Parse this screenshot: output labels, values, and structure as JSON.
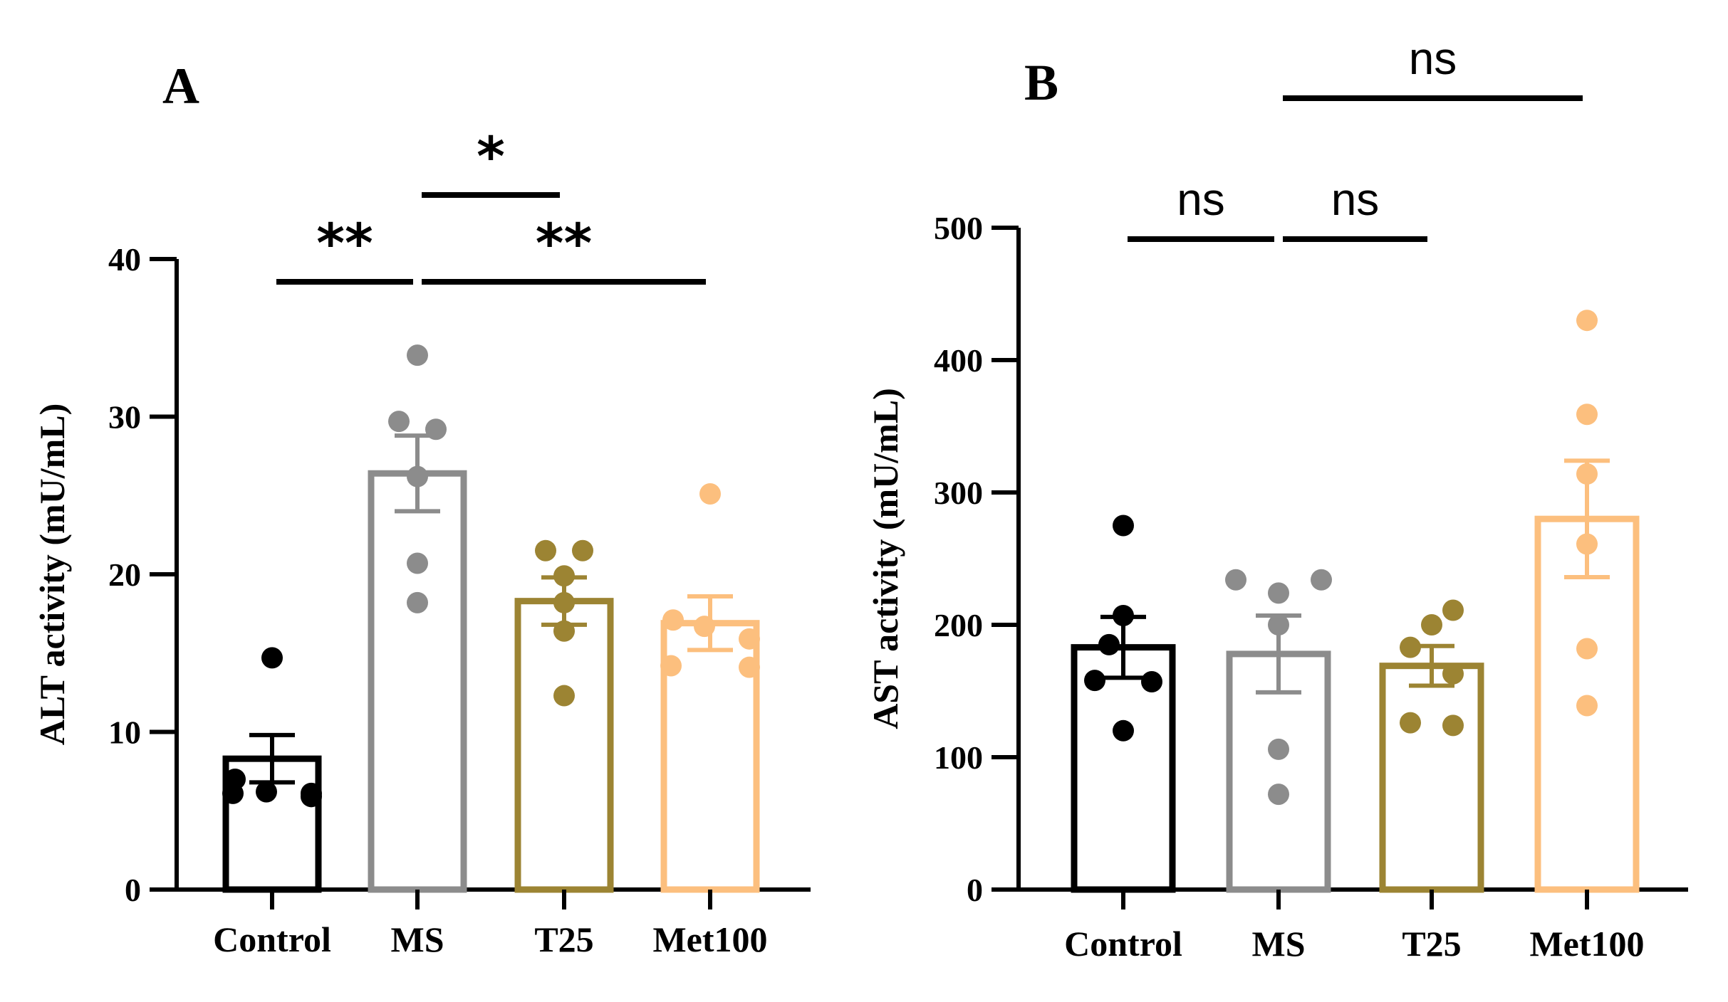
{
  "chart_data": [
    {
      "type": "bar",
      "panel_label": "A",
      "title": "",
      "xlabel": "",
      "ylabel": "ALT activity (mU/mL)",
      "ylim": [
        0,
        40
      ],
      "yticks": [
        0,
        10,
        20,
        30,
        40
      ],
      "categories": [
        "Control",
        "MS",
        "T25",
        "Met100"
      ],
      "bar_colors": [
        "#000000",
        "#8c8c8c",
        "#9c8433",
        "#fcbf7e"
      ],
      "values": [
        8.3,
        26.4,
        18.3,
        16.9
      ],
      "sem": [
        1.5,
        2.4,
        1.5,
        1.7
      ],
      "points": [
        [
          14.7,
          7.0,
          6.2,
          6.1,
          6.1,
          5.9
        ],
        [
          33.9,
          29.7,
          29.2,
          26.2,
          20.7,
          18.2
        ],
        [
          21.5,
          21.5,
          19.9,
          18.2,
          16.4,
          12.3
        ],
        [
          25.1,
          17.1,
          16.7,
          15.9,
          14.2,
          14.1
        ]
      ],
      "significance": [
        {
          "label": "**",
          "from": 0,
          "to": 1,
          "level": 0
        },
        {
          "label": "**",
          "from": 1,
          "to": 3,
          "level": 0
        },
        {
          "label": "*",
          "from": 1,
          "to": 2,
          "level": 1
        }
      ],
      "grid": false,
      "legend": "none"
    },
    {
      "type": "bar",
      "panel_label": "B",
      "title": "",
      "xlabel": "",
      "ylabel": "AST activity (mU/mL)",
      "ylim": [
        0,
        500
      ],
      "yticks": [
        0,
        100,
        200,
        300,
        400,
        500
      ],
      "categories": [
        "Control",
        "MS",
        "T25",
        "Met100"
      ],
      "bar_colors": [
        "#000000",
        "#8c8c8c",
        "#9c8433",
        "#fcbf7e"
      ],
      "values": [
        183,
        178,
        169,
        280
      ],
      "sem": [
        23,
        29,
        15,
        44
      ],
      "points": [
        [
          275,
          207,
          185,
          158,
          157,
          120
        ],
        [
          234,
          234,
          224,
          200,
          106,
          72
        ],
        [
          211,
          200,
          183,
          163,
          126,
          124
        ],
        [
          430,
          359,
          314,
          261,
          182,
          139
        ]
      ],
      "significance": [
        {
          "label": "ns",
          "from": 0,
          "to": 1,
          "level": 0
        },
        {
          "label": "ns",
          "from": 1,
          "to": 2,
          "level": 0
        },
        {
          "label": "ns",
          "from": 1,
          "to": 3,
          "level": 1
        }
      ],
      "grid": false,
      "legend": "none"
    }
  ]
}
